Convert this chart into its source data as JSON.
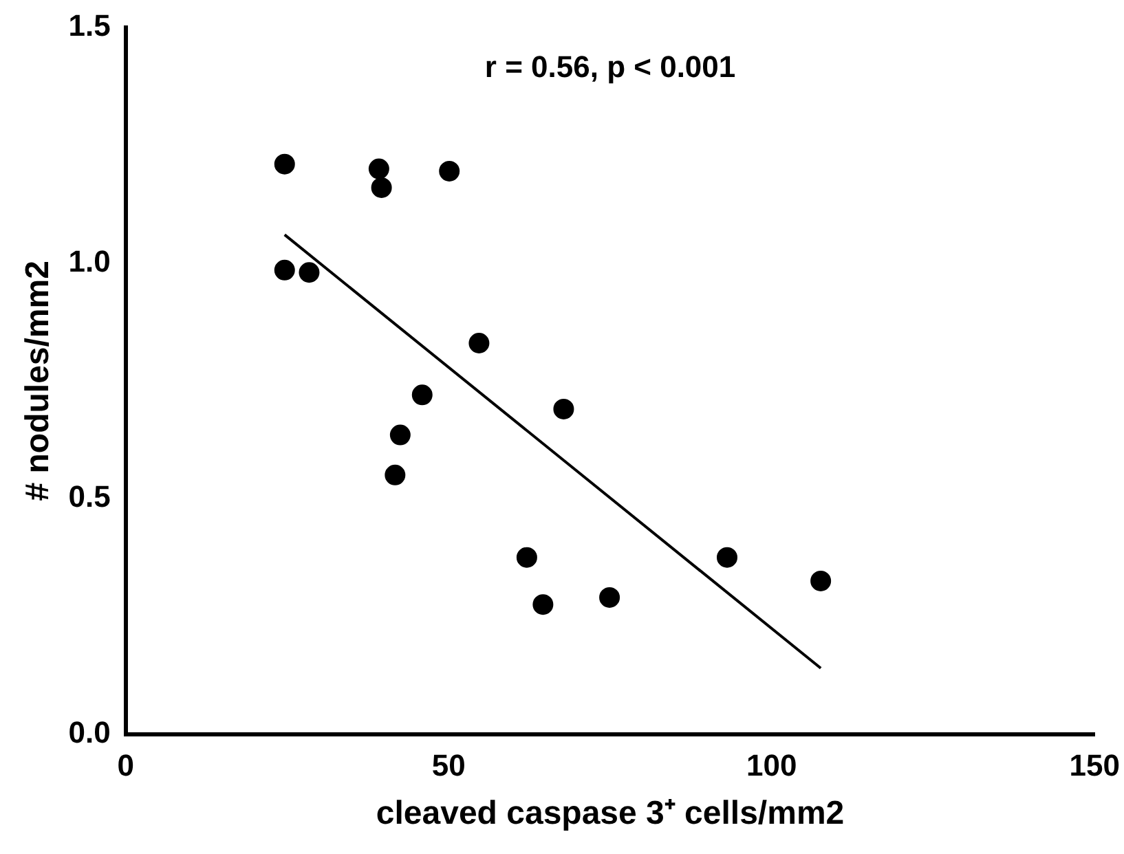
{
  "chart_data": {
    "type": "scatter",
    "xlabel": "cleaved caspase 3⁺ cells/mm2",
    "ylabel": "# nodules/mm2",
    "annotations": [
      "r = 0.56, p < 0.001"
    ],
    "xlim": [
      0,
      150
    ],
    "xticks": [
      0,
      50,
      100,
      150
    ],
    "ylim": [
      0,
      1.5
    ],
    "yticks": [
      {
        "value": 0,
        "label": "0.0"
      },
      {
        "value": 0.5,
        "label": "0.5"
      },
      {
        "value": 1,
        "label": "1.0"
      },
      {
        "value": 1.5,
        "label": "1.5"
      }
    ],
    "grid": false,
    "legend": false,
    "marker": "circle",
    "series": [
      {
        "color": "#000000",
        "x": [
          24.6,
          24.6,
          28.4,
          39.2,
          39.6,
          50.1,
          54.7,
          45.9,
          42.5,
          41.7,
          67.8,
          62.1,
          64.6,
          74.9,
          93.1,
          107.6
        ],
        "values": [
          1.21,
          0.985,
          0.98,
          1.2,
          1.16,
          1.195,
          0.83,
          0.72,
          0.635,
          0.55,
          0.69,
          0.375,
          0.275,
          0.29,
          0.375,
          0.325
        ]
      },
      {
        "type": "line",
        "color": "#000000",
        "marker": "none",
        "x": [
          24.6,
          107.6
        ],
        "values": [
          1.06,
          0.14
        ]
      }
    ]
  }
}
